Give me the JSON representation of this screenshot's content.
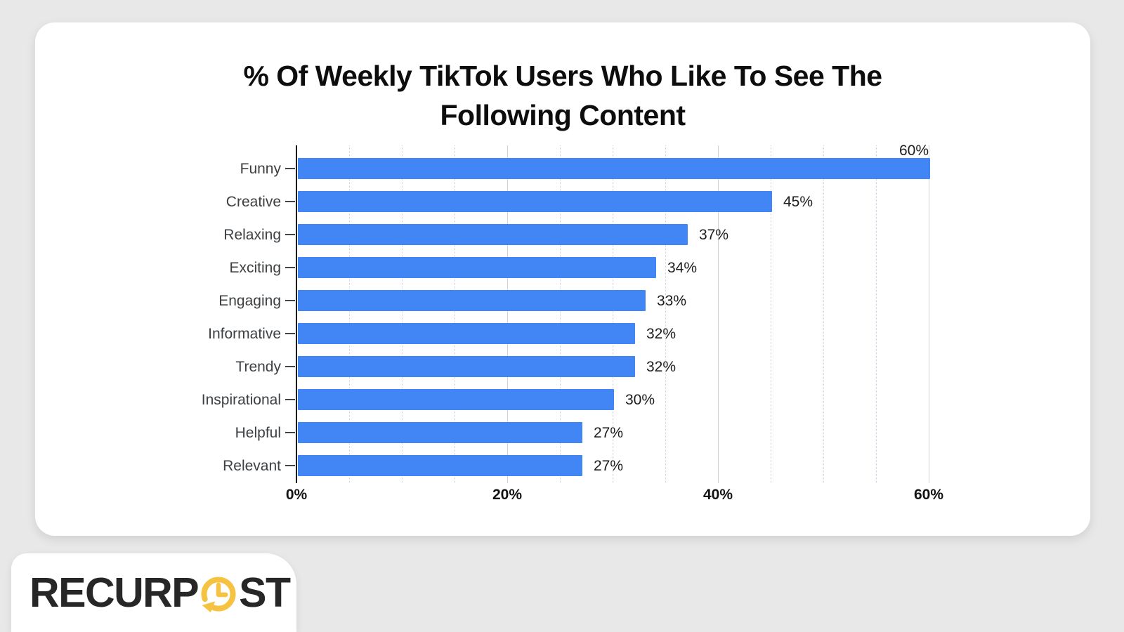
{
  "page": {
    "background_color": "#e8e8e8",
    "card_color": "#ffffff"
  },
  "chart_data": {
    "type": "bar",
    "orientation": "horizontal",
    "title": "% Of Weekly TikTok Users Who Like To See The Following Content",
    "categories": [
      "Funny",
      "Creative",
      "Relaxing",
      "Exciting",
      "Engaging",
      "Informative",
      "Trendy",
      "Inspirational",
      "Helpful",
      "Relevant"
    ],
    "values": [
      60,
      45,
      37,
      34,
      33,
      32,
      32,
      30,
      27,
      27
    ],
    "value_labels": [
      "60%",
      "45%",
      "37%",
      "34%",
      "33%",
      "32%",
      "32%",
      "30%",
      "27%",
      "27%"
    ],
    "x_ticks": [
      {
        "value": 0,
        "label": "0%"
      },
      {
        "value": 20,
        "label": "20%"
      },
      {
        "value": 40,
        "label": "40%"
      },
      {
        "value": 60,
        "label": "60%"
      }
    ],
    "xlim": [
      0,
      62
    ],
    "xlabel": "",
    "ylabel": "",
    "grid": {
      "major_every": 20,
      "minor_every": 5,
      "minor_max": 60
    },
    "legend": "none",
    "bar_color": "#4285f4",
    "major_grid_color": "#d2d2d2",
    "minor_grid_color": "#ccd4e6",
    "axis_color": "#1b1b1b"
  },
  "logo": {
    "text_before": "RECURP",
    "text_after": "ST",
    "icon": "clock-refresh-icon",
    "text_color": "#272727",
    "accent_color": "#F5C242"
  }
}
